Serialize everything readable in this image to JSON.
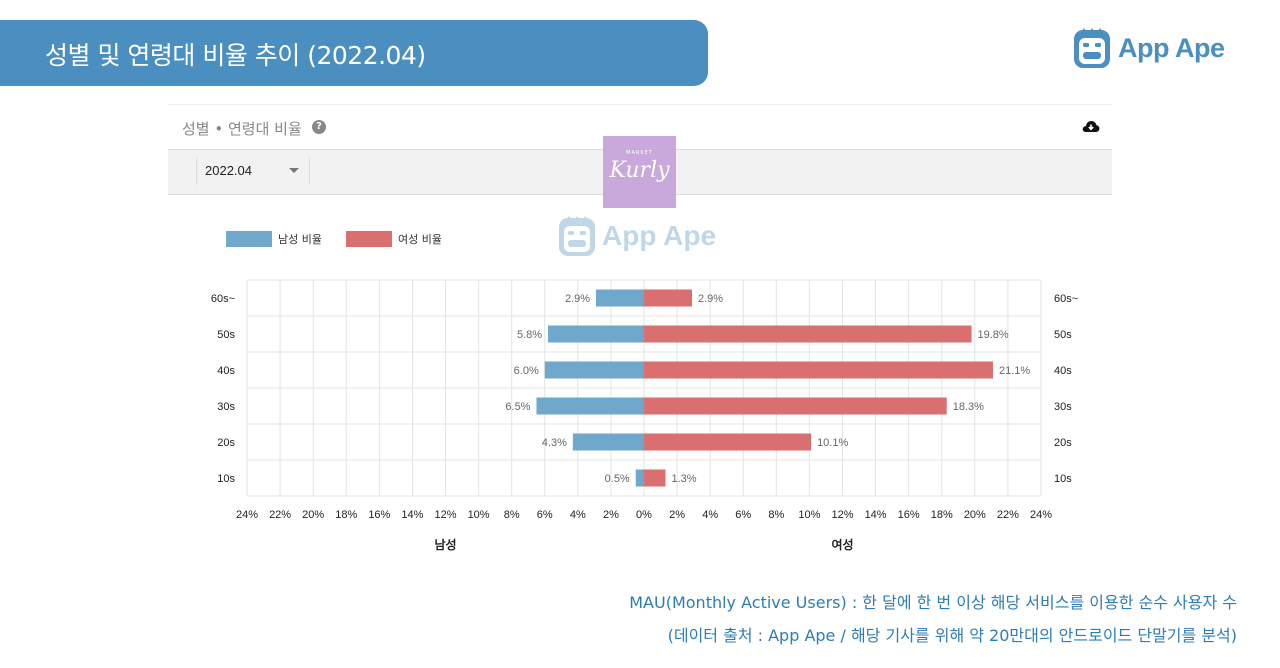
{
  "banner": {
    "title": "성별 및 연령대 비율 추이 (2022.04)"
  },
  "brand": {
    "name": "App Ape",
    "accent": "#4a8fc0"
  },
  "panel": {
    "title": "성별 • 연령대 비율",
    "help_icon": "question-circle-icon",
    "download_icon": "cloud-download-icon",
    "period_select": "2022.04"
  },
  "app_badge": {
    "name": "Kurly",
    "sub": "MARKET"
  },
  "chart_data": {
    "type": "bar",
    "orientation": "horizontal-population-pyramid",
    "categories": [
      "60s~",
      "50s",
      "40s",
      "30s",
      "20s",
      "10s"
    ],
    "series": [
      {
        "name": "남성 비율",
        "color": "#6fa8cb",
        "values": [
          2.9,
          5.8,
          6.0,
          6.5,
          4.3,
          0.5
        ]
      },
      {
        "name": "여성 비율",
        "color": "#d96f6f",
        "values": [
          2.9,
          19.8,
          21.1,
          18.3,
          10.1,
          1.3
        ]
      }
    ],
    "value_labels": {
      "male": [
        "2.9%",
        "5.8%",
        "6.0%",
        "6.5%",
        "4.3%",
        "0.5%"
      ],
      "female": [
        "2.9%",
        "19.8%",
        "21.1%",
        "18.3%",
        "10.1%",
        "1.3%"
      ]
    },
    "xticks": [
      "24%",
      "22%",
      "20%",
      "18%",
      "16%",
      "14%",
      "12%",
      "10%",
      "8%",
      "6%",
      "4%",
      "2%",
      "0%",
      "2%",
      "4%",
      "6%",
      "8%",
      "10%",
      "12%",
      "14%",
      "16%",
      "18%",
      "20%",
      "22%",
      "24%"
    ],
    "xlim": [
      -24,
      24
    ],
    "xlabel_left": "남성",
    "xlabel_right": "여성",
    "grid": true,
    "legend": "top-left"
  },
  "footnotes": [
    "MAU(Monthly Active Users) : 한 달에 한 번 이상 해당 서비스를 이용한 순수 사용자 수",
    "(데이터 출처 : App Ape / 해당 기사를 위해 약 20만대의 안드로이드 단말기를 분석)"
  ]
}
